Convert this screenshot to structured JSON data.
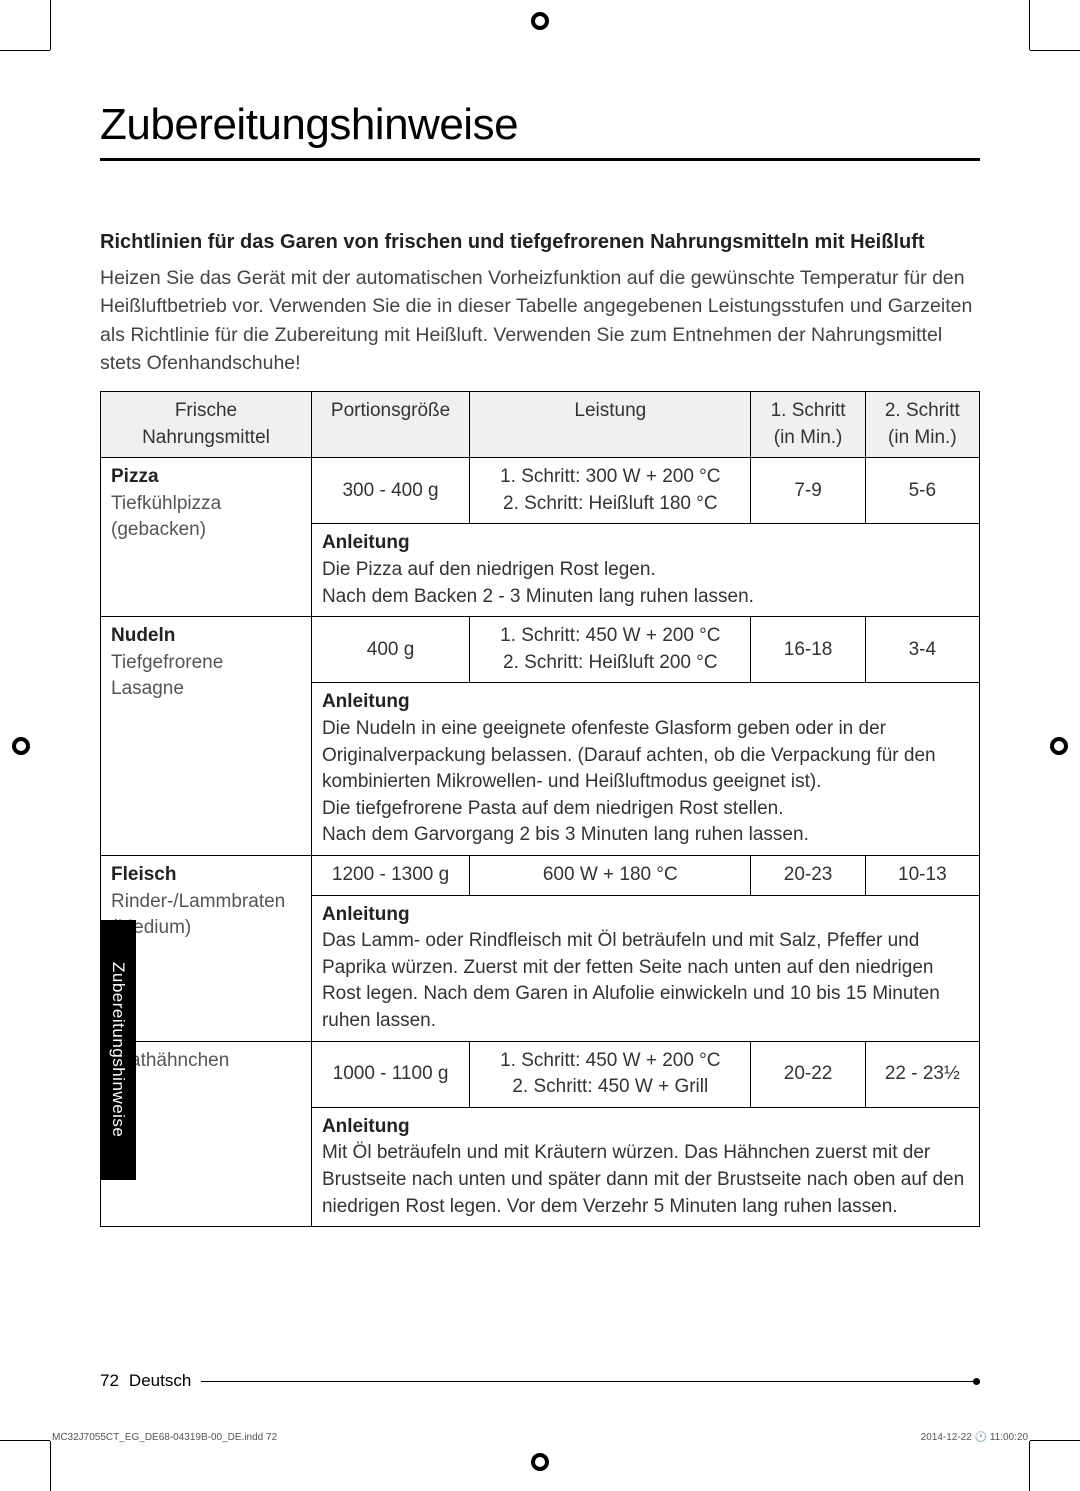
{
  "title": "Zubereitungshinweise",
  "section_title": "Richtlinien für das Garen von frischen und tiefgefrorenen Nahrungsmitteln mit Heißluft",
  "intro": "Heizen Sie das Gerät mit der automatischen Vorheizfunktion auf die gewünschte Temperatur für den Heißluftbetrieb vor. Verwenden Sie die in dieser Tabelle angegebenen Leistungsstufen und Garzeiten als Richtlinie für die Zubereitung mit Heißluft. Verwenden Sie zum Entnehmen der Nahrungsmittel stets Ofenhandschuhe!",
  "side_tab": "Zubereitungshinweise",
  "table": {
    "headers": {
      "col1_a": "Frische",
      "col1_b": "Nahrungsmittel",
      "col2": "Portionsgröße",
      "col3": "Leistung",
      "col4_a": "1. Schritt",
      "col4_b": "(in Min.)",
      "col5_a": "2. Schritt",
      "col5_b": "(in Min.)"
    },
    "anleitung_label": "Anleitung",
    "rows": [
      {
        "cat": "Pizza",
        "sub": "Tiefkühlpizza (gebacken)",
        "portion": "300 - 400 g",
        "power": "1. Schritt: 300 W + 200 °C\n2. Schritt: Heißluft 180 °C",
        "step1": "7-9",
        "step2": "5-6",
        "instructions": "Die Pizza auf den niedrigen Rost legen.\nNach dem Backen 2 - 3 Minuten lang ruhen lassen."
      },
      {
        "cat": "Nudeln",
        "sub": "Tiefgefrorene Lasagne",
        "portion": "400 g",
        "power": "1. Schritt: 450 W + 200 °C\n2. Schritt: Heißluft 200 °C",
        "step1": "16-18",
        "step2": "3-4",
        "instructions": "Die Nudeln in eine geeignete ofenfeste Glasform geben oder in der Originalverpackung belassen. (Darauf achten, ob die Verpackung für den kombinierten Mikrowellen- und Heißluftmodus geeignet ist).\nDie tiefgefrorene Pasta auf dem niedrigen Rost stellen.\nNach dem Garvorgang 2 bis 3 Minuten lang ruhen lassen."
      },
      {
        "cat": "Fleisch",
        "sub": "Rinder-/Lammbraten (Medium)",
        "portion": "1200 - 1300 g",
        "power": "600 W + 180 °C",
        "step1": "20-23",
        "step2": "10-13",
        "instructions": "Das Lamm- oder Rindfleisch mit Öl beträufeln und mit Salz, Pfeffer und Paprika würzen. Zuerst mit der fetten Seite nach unten auf den niedrigen Rost legen. Nach dem Garen in Alufolie einwickeln und 10 bis 15 Minuten ruhen lassen."
      },
      {
        "cat": "",
        "sub": "Brathähnchen",
        "portion": "1000 - 1100 g",
        "power": "1. Schritt: 450 W + 200 °C\n2. Schritt: 450 W + Grill",
        "step1": "20-22",
        "step2": "22 - 23½",
        "instructions": "Mit Öl beträufeln und mit Kräutern würzen. Das Hähnchen zuerst mit der Brustseite nach unten und später dann mit der Brustseite nach oben auf den niedrigen Rost legen. Vor dem Verzehr 5 Minuten lang ruhen lassen."
      }
    ],
    "col_widths": [
      "24%",
      "18%",
      "32%",
      "13%",
      "13%"
    ]
  },
  "footer": {
    "page": "72",
    "lang": "Deutsch"
  },
  "meta": {
    "left": "MC32J7055CT_EG_DE68-04319B-00_DE.indd   72",
    "right": "2014-12-22   🕐 11:00:20"
  },
  "colors": {
    "text": "#000000",
    "muted": "#555555",
    "header_bg": "#f0f0f0",
    "border": "#000000",
    "sidebar_bg": "#000000",
    "sidebar_text": "#ffffff"
  }
}
